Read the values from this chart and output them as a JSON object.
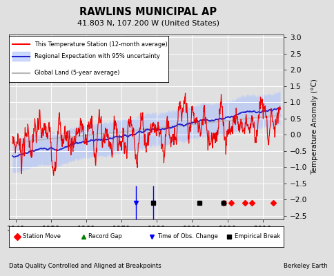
{
  "title": "RAWLINS MUNICIPAL AP",
  "subtitle": "41.803 N, 107.200 W (United States)",
  "ylabel": "Temperature Anomaly (°C)",
  "xlabel_note": "Data Quality Controlled and Aligned at Breakpoints",
  "xlabel_note_right": "Berkeley Earth",
  "ylim": [
    -2.6,
    3.1
  ],
  "xlim": [
    1938,
    2016
  ],
  "yticks": [
    -2.5,
    -2,
    -1.5,
    -1,
    -0.5,
    0,
    0.5,
    1,
    1.5,
    2,
    2.5,
    3
  ],
  "xticks": [
    1940,
    1950,
    1960,
    1970,
    1980,
    1990,
    2000,
    2010
  ],
  "bg_color": "#e0e0e0",
  "plot_bg_color": "#e0e0e0",
  "station_move_years": [
    1999,
    2001,
    2005,
    2007,
    2013
  ],
  "time_obs_change_years": [
    1974,
    1979
  ],
  "empirical_break_years": [
    1979,
    1992,
    1999
  ],
  "legend_labels": [
    "This Temperature Station (12-month average)",
    "Regional Expectation with 95% uncertainty",
    "Global Land (5-year average)"
  ]
}
